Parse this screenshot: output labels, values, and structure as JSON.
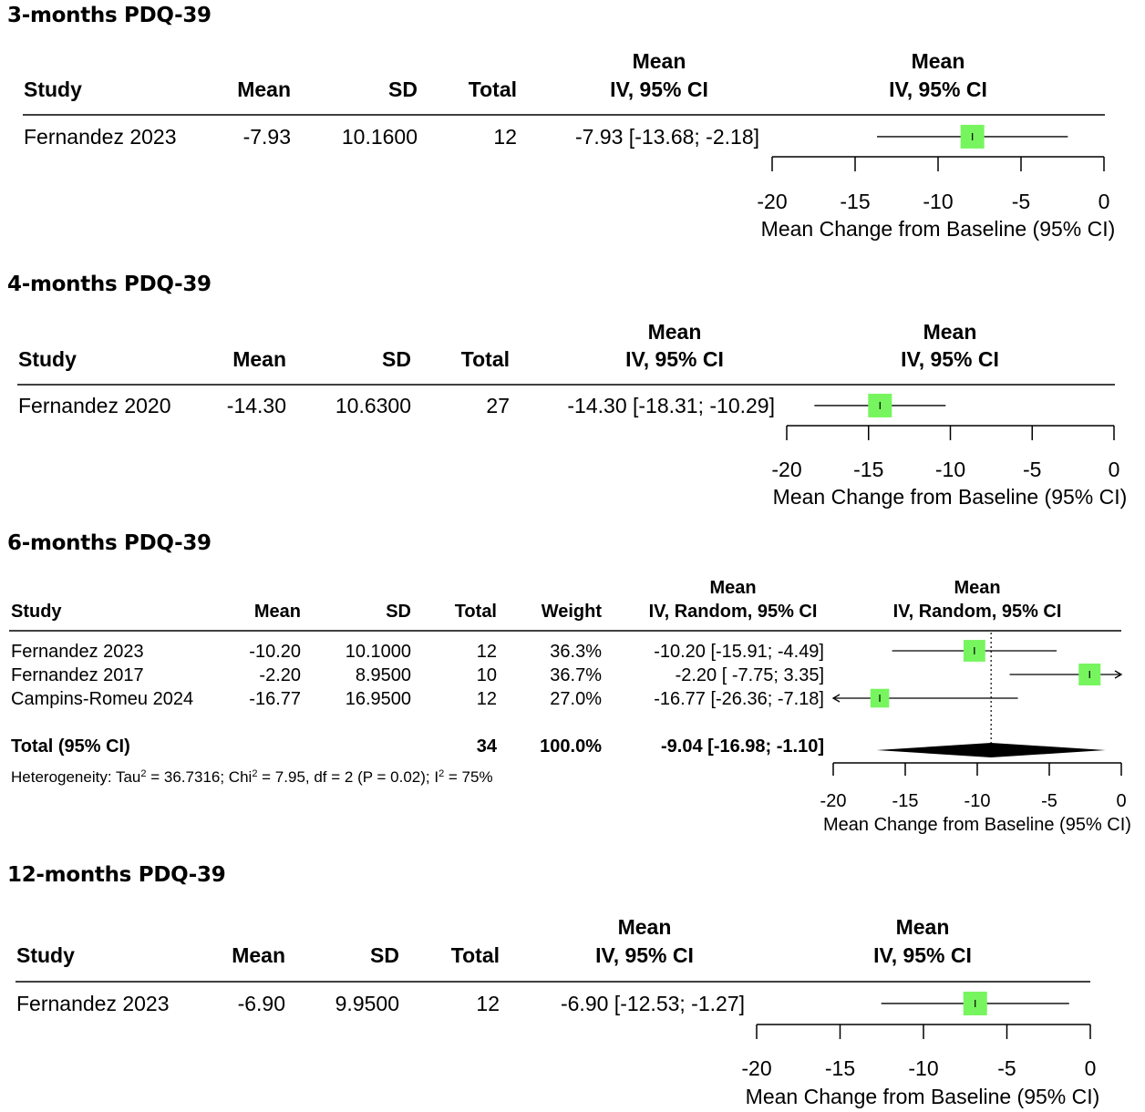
{
  "chart_data": [
    {
      "type": "forest",
      "title": "3-months PDQ-39",
      "columns": {
        "study": "Study",
        "mean": "Mean",
        "sd": "SD",
        "total": "Total",
        "ci_line1": "Mean",
        "ci_line2": "IV, 95% CI",
        "plot_line1": "Mean",
        "plot_line2": "IV, 95% CI"
      },
      "studies": [
        {
          "name": "Fernandez 2023",
          "mean": "-7.93",
          "sd": "10.1600",
          "total": "12",
          "ci_text": "-7.93 [-13.68; -2.18]",
          "est": -7.93,
          "lo": -13.68,
          "hi": -2.18
        }
      ],
      "xlabel": "Mean Change from Baseline (95% CI)",
      "xlim": [
        -20,
        0
      ],
      "xticks": [
        "-20",
        "-15",
        "-10",
        "-5",
        "0"
      ],
      "xtick_values": [
        -20,
        -15,
        -10,
        -5,
        0
      ]
    },
    {
      "type": "forest",
      "title": "4-months PDQ-39",
      "columns": {
        "study": "Study",
        "mean": "Mean",
        "sd": "SD",
        "total": "Total",
        "ci_line1": "Mean",
        "ci_line2": "IV, 95% CI",
        "plot_line1": "Mean",
        "plot_line2": "IV, 95% CI"
      },
      "studies": [
        {
          "name": "Fernandez 2020",
          "mean": "-14.30",
          "sd": "10.6300",
          "total": "27",
          "ci_text": "-14.30 [-18.31; -10.29]",
          "est": -14.3,
          "lo": -18.31,
          "hi": -10.29
        }
      ],
      "xlabel": "Mean Change from Baseline (95% CI)",
      "xlim": [
        -20,
        0
      ],
      "xticks": [
        "-20",
        "-15",
        "-10",
        "-5",
        "0"
      ],
      "xtick_values": [
        -20,
        -15,
        -10,
        -5,
        0
      ]
    },
    {
      "type": "forest",
      "title": "6-months PDQ-39",
      "columns": {
        "study": "Study",
        "mean": "Mean",
        "sd": "SD",
        "total": "Total",
        "weight": "Weight",
        "ci_line1": "Mean",
        "ci_line2": "IV, Random, 95% CI",
        "plot_line1": "Mean",
        "plot_line2": "IV, Random, 95% CI"
      },
      "studies": [
        {
          "name": "Fernandez 2023",
          "mean": "-10.20",
          "sd": "10.1000",
          "total": "12",
          "weight": "36.3%",
          "weight_value": 36.3,
          "ci_text": "-10.20 [-15.91; -4.49]",
          "est": -10.2,
          "lo": -15.91,
          "hi": -4.49
        },
        {
          "name": "Fernandez 2017",
          "mean": "-2.20",
          "sd": "8.9500",
          "total": "10",
          "weight": "36.7%",
          "weight_value": 36.7,
          "ci_text": "-2.20 [ -7.75;  3.35]",
          "est": -2.2,
          "lo": -7.75,
          "hi": 3.35
        },
        {
          "name": "Campins-Romeu 2024",
          "mean": "-16.77",
          "sd": "16.9500",
          "total": "12",
          "weight": "27.0%",
          "weight_value": 27.0,
          "ci_text": "-16.77 [-26.36; -7.18]",
          "est": -16.77,
          "lo": -26.36,
          "hi": -7.18
        }
      ],
      "pooled": {
        "label": "Total (95% CI)",
        "total": "34",
        "weight": "100.0%",
        "ci_text": "-9.04 [-16.98; -1.10]",
        "est": -9.04,
        "lo": -16.98,
        "hi": -1.1
      },
      "heterogeneity": {
        "prefix": "Heterogeneity: Tau",
        "tau2": "= 36.7316; Chi",
        "chi2": "= 7.95, df = 2 (P = 0.02); I",
        "i2": "= 75%",
        "sup": "2"
      },
      "xlabel": "Mean Change from Baseline (95% CI)",
      "xlim": [
        -20,
        0
      ],
      "xticks": [
        "-20",
        "-15",
        "-10",
        "-5",
        "0"
      ],
      "xtick_values": [
        -20,
        -15,
        -10,
        -5,
        0
      ]
    },
    {
      "type": "forest",
      "title": "12-months PDQ-39",
      "columns": {
        "study": "Study",
        "mean": "Mean",
        "sd": "SD",
        "total": "Total",
        "ci_line1": "Mean",
        "ci_line2": "IV, 95% CI",
        "plot_line1": "Mean",
        "plot_line2": "IV, 95% CI"
      },
      "studies": [
        {
          "name": "Fernandez 2023",
          "mean": "-6.90",
          "sd": "9.9500",
          "total": "12",
          "ci_text": "-6.90 [-12.53; -1.27]",
          "est": -6.9,
          "lo": -12.53,
          "hi": -1.27
        }
      ],
      "xlabel": "Mean Change from Baseline (95% CI)",
      "xlim": [
        -20,
        0
      ],
      "xticks": [
        "-20",
        "-15",
        "-10",
        "-5",
        "0"
      ],
      "xtick_values": [
        -20,
        -15,
        -10,
        -5,
        0
      ]
    }
  ],
  "colors": {
    "square": "#77f55f",
    "line": "#000000"
  }
}
